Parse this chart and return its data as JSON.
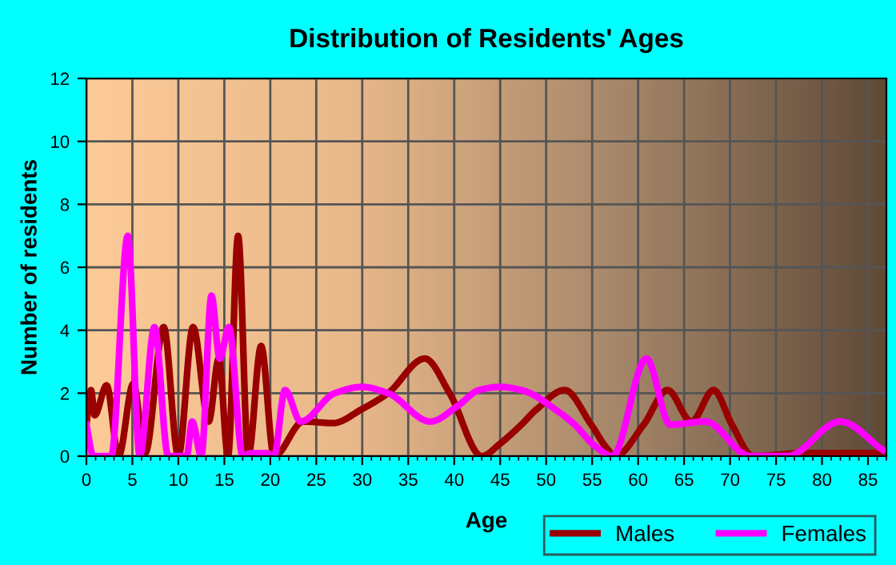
{
  "chart_data": {
    "type": "line",
    "title": "Distribution of Residents' Ages",
    "xlabel": "Age",
    "ylabel": "Number of residents",
    "xlim": [
      0,
      87
    ],
    "ylim": [
      0,
      12
    ],
    "xticks": [
      0,
      5,
      10,
      15,
      20,
      25,
      30,
      35,
      40,
      45,
      50,
      55,
      60,
      65,
      70,
      75,
      80,
      85
    ],
    "yticks": [
      0,
      2,
      4,
      6,
      8,
      10,
      12
    ],
    "grid": true,
    "legend": "bottom right",
    "marker": "none",
    "line_style": "solid",
    "series": [
      {
        "name": "Males",
        "color": "#990000",
        "x": [
          0,
          0.5,
          0.9,
          2.2,
          3.5,
          5.1,
          6.4,
          8.4,
          10,
          11.6,
          13.3,
          14.4,
          15.4,
          16.5,
          17.6,
          19,
          20.4,
          23.6,
          26.8,
          30,
          32.8,
          36.8,
          39.5,
          43,
          45,
          47.3,
          49,
          52,
          54.9,
          56.6,
          57.5,
          60.6,
          63.2,
          65.8,
          68.2,
          70.2,
          72.5,
          78,
          87
        ],
        "values": [
          1,
          2.1,
          1.3,
          2.25,
          0,
          2.3,
          0.1,
          4.1,
          0,
          4.1,
          1.1,
          3.1,
          0,
          7,
          0,
          3.5,
          0,
          1.1,
          1.05,
          1.5,
          2,
          3.1,
          2,
          0,
          0.4,
          1,
          1.5,
          2.1,
          1,
          0.25,
          0,
          1,
          2.1,
          1.1,
          2.1,
          1,
          0,
          0.1,
          0.1
        ]
      },
      {
        "name": "Females",
        "color": "#ff00ff",
        "x": [
          0,
          0.75,
          2.7,
          4.5,
          5.8,
          7.4,
          8.9,
          10.9,
          11.5,
          12.5,
          13.6,
          14.5,
          15.5,
          17,
          18,
          19.5,
          20.4,
          21.6,
          23.3,
          27,
          30,
          32.8,
          37.4,
          40.4,
          42.7,
          45,
          47.3,
          51.4,
          53.1,
          55.4,
          57.2,
          60.9,
          63.5,
          67.3,
          72.2,
          76.2,
          82,
          86.6
        ],
        "values": [
          1,
          0,
          0,
          7,
          0,
          4.1,
          0,
          0,
          1.1,
          0,
          5.1,
          3.1,
          4.1,
          0,
          0.1,
          0.1,
          0,
          2.1,
          1.1,
          2,
          2.2,
          2,
          1.1,
          1.6,
          2.1,
          2.2,
          2.1,
          1.4,
          1,
          0.3,
          0,
          3.1,
          1,
          1.1,
          0,
          0,
          1.1,
          0.2
        ]
      }
    ]
  }
}
